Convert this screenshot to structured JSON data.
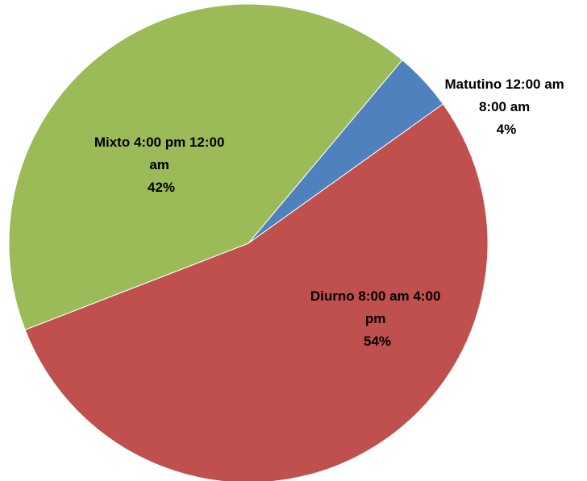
{
  "chart_data": {
    "type": "pie",
    "title": "",
    "categories": [
      "Matutino 12:00 am 8:00 am",
      "Diurno 8:00 am 4:00 pm",
      "Mixto 4:00 pm 12:00 am"
    ],
    "values": [
      4,
      54,
      42
    ],
    "value_unit": "%",
    "colors": [
      "#4f81bd",
      "#c0504d",
      "#9bbb59"
    ],
    "start_angle_deg": 40,
    "direction": "clockwise",
    "legend": "none",
    "labels": [
      {
        "lines": [
          "Matutino 12:00 am",
          "8:00 am",
          "4%"
        ]
      },
      {
        "lines": [
          "Diurno 8:00 am 4:00",
          "pm",
          "54%"
        ]
      },
      {
        "lines": [
          "Mixto 4:00 pm 12:00",
          "am",
          "42%"
        ]
      }
    ]
  }
}
